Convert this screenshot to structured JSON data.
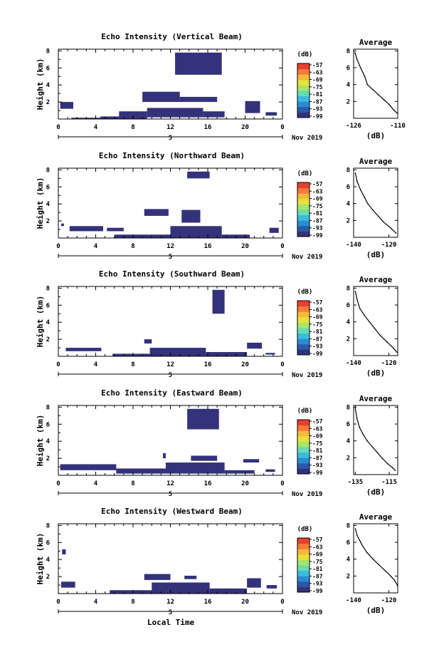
{
  "figure": {
    "bottom_label": "Local Time"
  },
  "colors": {
    "echo": "#34327a",
    "colorbar": [
      "#34327a",
      "#2a5aa8",
      "#2a8cd0",
      "#3cbbe0",
      "#66ddb0",
      "#a8e46a",
      "#e6e23c",
      "#f8b838",
      "#f67a38",
      "#e6402e"
    ]
  },
  "chart_data": [
    {
      "type": "heatmap",
      "title": "Echo Intensity (Vertical Beam)",
      "ylabel": "Height (km)",
      "ylim": [
        0,
        8.2
      ],
      "yticks": [
        "2",
        "4",
        "6",
        "8"
      ],
      "xlim": [
        0,
        24
      ],
      "xticks": [
        "0",
        "4",
        "8",
        "12",
        "16",
        "20",
        "0"
      ],
      "date_marker": "5",
      "date_label": "Nov 2019",
      "colorbar": {
        "unit": "(dB)",
        "labels": [
          "-57",
          "-63",
          "-69",
          "-75",
          "-81",
          "-87",
          "-93",
          "-99"
        ]
      },
      "echo_regions": [
        {
          "x": [
            0.2,
            1.6
          ],
          "y": [
            1.2,
            2.0
          ]
        },
        {
          "x": [
            1.4,
            4.5
          ],
          "y": [
            0,
            0.15
          ]
        },
        {
          "x": [
            4.5,
            7.0
          ],
          "y": [
            0,
            0.3
          ]
        },
        {
          "x": [
            6.5,
            9.5
          ],
          "y": [
            0,
            0.9
          ]
        },
        {
          "x": [
            9.5,
            15.5
          ],
          "y": [
            0.2,
            1.3
          ]
        },
        {
          "x": [
            15.5,
            17.8
          ],
          "y": [
            0.2,
            0.9
          ]
        },
        {
          "x": [
            9.0,
            13.0
          ],
          "y": [
            2.0,
            3.2
          ]
        },
        {
          "x": [
            13.0,
            17.0
          ],
          "y": [
            2.0,
            2.6
          ]
        },
        {
          "x": [
            12.5,
            17.5
          ],
          "y": [
            5.2,
            7.8
          ]
        },
        {
          "x": [
            20.0,
            21.6
          ],
          "y": [
            0.7,
            2.1
          ]
        },
        {
          "x": [
            22.2,
            23.4
          ],
          "y": [
            0.4,
            0.8
          ]
        }
      ],
      "avg_profile": {
        "title": "Average",
        "xlabel": "(dB)",
        "xlim": [
          -126,
          -110
        ],
        "xticks": [
          "-126",
          "-110"
        ],
        "ylim": [
          0,
          8.2
        ],
        "yticks": [
          "2",
          "4",
          "6",
          "8"
        ],
        "x": [
          -125.5,
          -124.8,
          -123.5,
          -122.0,
          -121.0,
          -119.0,
          -117.0,
          -115.0,
          -113.0,
          -111.5,
          -110.2
        ],
        "y": [
          7.8,
          7.0,
          6.0,
          5.0,
          4.0,
          3.4,
          2.8,
          2.2,
          1.6,
          1.0,
          0.6
        ]
      }
    },
    {
      "type": "heatmap",
      "title": "Echo Intensity (Northward Beam)",
      "ylabel": "Height (km)",
      "ylim": [
        0,
        8.2
      ],
      "yticks": [
        "2",
        "4",
        "6",
        "8"
      ],
      "xlim": [
        0,
        24
      ],
      "xticks": [
        "0",
        "4",
        "8",
        "12",
        "16",
        "20",
        "0"
      ],
      "date_marker": "5",
      "date_label": "Nov 2019",
      "colorbar": {
        "unit": "(dB)",
        "labels": [
          "-57",
          "-63",
          "-69",
          "-75",
          "-81",
          "-87",
          "-93",
          "-99"
        ]
      },
      "echo_regions": [
        {
          "x": [
            0.3,
            0.6
          ],
          "y": [
            1.4,
            1.7
          ]
        },
        {
          "x": [
            1.2,
            4.8
          ],
          "y": [
            0.8,
            1.4
          ]
        },
        {
          "x": [
            5.2,
            7.0
          ],
          "y": [
            0.8,
            1.2
          ]
        },
        {
          "x": [
            6.0,
            12.0
          ],
          "y": [
            0,
            0.4
          ]
        },
        {
          "x": [
            12.0,
            17.5
          ],
          "y": [
            0,
            1.4
          ]
        },
        {
          "x": [
            17.5,
            20.5
          ],
          "y": [
            0,
            0.4
          ]
        },
        {
          "x": [
            9.2,
            11.8
          ],
          "y": [
            2.6,
            3.4
          ]
        },
        {
          "x": [
            13.2,
            15.2
          ],
          "y": [
            1.8,
            3.3
          ]
        },
        {
          "x": [
            13.8,
            16.2
          ],
          "y": [
            7.0,
            7.8
          ]
        },
        {
          "x": [
            22.6,
            23.6
          ],
          "y": [
            0.6,
            1.2
          ]
        }
      ],
      "avg_profile": {
        "title": "Average",
        "xlabel": "(dB)",
        "xlim": [
          -140,
          -115
        ],
        "xticks": [
          "-140",
          "-120"
        ],
        "ylim": [
          0,
          8.2
        ],
        "yticks": [
          "2",
          "4",
          "6",
          "8"
        ],
        "x": [
          -139.0,
          -138.0,
          -136.0,
          -134.0,
          -132.0,
          -129.0,
          -126.0,
          -123.0,
          -119.0,
          -116.0
        ],
        "y": [
          7.6,
          6.6,
          5.6,
          4.8,
          4.0,
          3.2,
          2.5,
          1.8,
          1.1,
          0.5
        ]
      }
    },
    {
      "type": "heatmap",
      "title": "Echo Intensity (Southward Beam)",
      "ylabel": "Height (km)",
      "ylim": [
        0,
        8.2
      ],
      "yticks": [
        "2",
        "4",
        "6",
        "8"
      ],
      "xlim": [
        0,
        24
      ],
      "xticks": [
        "0",
        "4",
        "8",
        "12",
        "16",
        "20",
        "0"
      ],
      "date_marker": "5",
      "date_label": "Nov 2019",
      "colorbar": {
        "unit": "(dB)",
        "labels": [
          "-57",
          "-63",
          "-69",
          "-75",
          "-81",
          "-87",
          "-93",
          "-99"
        ]
      },
      "echo_regions": [
        {
          "x": [
            0.8,
            4.6
          ],
          "y": [
            0.6,
            1.0
          ]
        },
        {
          "x": [
            5.8,
            9.8
          ],
          "y": [
            0,
            0.3
          ]
        },
        {
          "x": [
            9.8,
            15.8
          ],
          "y": [
            0,
            1.0
          ]
        },
        {
          "x": [
            15.8,
            20.2
          ],
          "y": [
            0,
            0.5
          ]
        },
        {
          "x": [
            9.2,
            10.0
          ],
          "y": [
            1.5,
            2.0
          ]
        },
        {
          "x": [
            16.5,
            17.8
          ],
          "y": [
            5.0,
            7.8
          ]
        },
        {
          "x": [
            20.2,
            21.8
          ],
          "y": [
            0.9,
            1.6
          ]
        },
        {
          "x": [
            22.2,
            23.2
          ],
          "y": [
            0.2,
            0.4
          ]
        }
      ],
      "avg_profile": {
        "title": "Average",
        "xlabel": "(dB)",
        "xlim": [
          -140,
          -115
        ],
        "xticks": [
          "-140",
          "-120"
        ],
        "ylim": [
          0,
          8.2
        ],
        "yticks": [
          "2",
          "4",
          "6",
          "8"
        ],
        "x": [
          -139.0,
          -138.0,
          -136.5,
          -134.0,
          -131.0,
          -128.0,
          -125.0,
          -121.0,
          -117.5,
          -115.5
        ],
        "y": [
          7.6,
          6.6,
          5.6,
          4.8,
          4.0,
          3.2,
          2.4,
          1.6,
          0.9,
          0.4
        ]
      }
    },
    {
      "type": "heatmap",
      "title": "Echo Intensity (Eastward Beam)",
      "ylabel": "Height (km)",
      "ylim": [
        0,
        8.2
      ],
      "yticks": [
        "2",
        "4",
        "6",
        "8"
      ],
      "xlim": [
        0,
        24
      ],
      "xticks": [
        "0",
        "4",
        "8",
        "12",
        "16",
        "20",
        "0"
      ],
      "date_marker": "5",
      "date_label": "Nov 2019",
      "colorbar": {
        "unit": "(dB)",
        "labels": [
          "-57",
          "-63",
          "-69",
          "-75",
          "-81",
          "-87",
          "-93",
          "-99"
        ]
      },
      "echo_regions": [
        {
          "x": [
            0.2,
            6.2
          ],
          "y": [
            0.6,
            1.3
          ]
        },
        {
          "x": [
            6.2,
            11.5
          ],
          "y": [
            0.2,
            0.8
          ]
        },
        {
          "x": [
            11.5,
            17.8
          ],
          "y": [
            0.2,
            1.5
          ]
        },
        {
          "x": [
            17.8,
            21.0
          ],
          "y": [
            0.2,
            0.6
          ]
        },
        {
          "x": [
            14.2,
            17.0
          ],
          "y": [
            1.7,
            2.3
          ]
        },
        {
          "x": [
            13.8,
            17.2
          ],
          "y": [
            5.4,
            7.8
          ]
        },
        {
          "x": [
            19.8,
            21.5
          ],
          "y": [
            1.5,
            1.9
          ]
        },
        {
          "x": [
            22.2,
            23.2
          ],
          "y": [
            0.4,
            0.7
          ]
        },
        {
          "x": [
            11.2,
            11.5
          ],
          "y": [
            2.0,
            2.6
          ]
        }
      ],
      "avg_profile": {
        "title": "Average",
        "xlabel": "(dB)",
        "xlim": [
          -136,
          -110
        ],
        "xticks": [
          "-135",
          "-115"
        ],
        "ylim": [
          0,
          8.2
        ],
        "yticks": [
          "2",
          "4",
          "6",
          "8"
        ],
        "x": [
          -135.0,
          -134.0,
          -132.5,
          -130.5,
          -128.0,
          -125.0,
          -122.0,
          -119.0,
          -116.0,
          -113.0,
          -111.5
        ],
        "y": [
          7.8,
          6.6,
          5.6,
          4.8,
          4.0,
          3.3,
          2.6,
          1.9,
          1.3,
          0.8,
          0.5
        ]
      }
    },
    {
      "type": "heatmap",
      "title": "Echo Intensity (Westward Beam)",
      "ylabel": "Height (km)",
      "ylim": [
        0,
        8.2
      ],
      "yticks": [
        "2",
        "4",
        "6",
        "8"
      ],
      "xlim": [
        0,
        24
      ],
      "xticks": [
        "0",
        "4",
        "8",
        "12",
        "16",
        "20",
        "0"
      ],
      "date_marker": "5",
      "date_label": "Nov 2019",
      "colorbar": {
        "unit": "(dB)",
        "labels": [
          "-57",
          "-63",
          "-69",
          "-75",
          "-81",
          "-87",
          "-93",
          "-99"
        ]
      },
      "echo_regions": [
        {
          "x": [
            0.3,
            1.8
          ],
          "y": [
            0.7,
            1.4
          ]
        },
        {
          "x": [
            5.5,
            10.0
          ],
          "y": [
            0,
            0.4
          ]
        },
        {
          "x": [
            10.0,
            16.2
          ],
          "y": [
            0,
            1.3
          ]
        },
        {
          "x": [
            16.2,
            20.2
          ],
          "y": [
            0,
            0.6
          ]
        },
        {
          "x": [
            9.2,
            12.0
          ],
          "y": [
            1.6,
            2.3
          ]
        },
        {
          "x": [
            13.5,
            14.8
          ],
          "y": [
            1.7,
            2.1
          ]
        },
        {
          "x": [
            20.2,
            21.7
          ],
          "y": [
            0.7,
            1.8
          ]
        },
        {
          "x": [
            22.3,
            23.4
          ],
          "y": [
            0.6,
            1.0
          ]
        },
        {
          "x": [
            0.4,
            0.8
          ],
          "y": [
            4.6,
            5.2
          ]
        }
      ],
      "avg_profile": {
        "title": "Average",
        "xlabel": "(dB)",
        "xlim": [
          -140,
          -115
        ],
        "xticks": [
          "-140",
          "-120"
        ],
        "ylim": [
          0,
          8.2
        ],
        "yticks": [
          "2",
          "4",
          "6",
          "8"
        ],
        "x": [
          -139.0,
          -138.0,
          -136.0,
          -135.0,
          -132.5,
          -129.0,
          -126.0,
          -122.0,
          -119.0,
          -116.5,
          -115.0
        ],
        "y": [
          7.6,
          6.8,
          6.0,
          5.6,
          4.8,
          4.0,
          3.4,
          2.6,
          2.0,
          1.4,
          0.8
        ]
      }
    }
  ]
}
